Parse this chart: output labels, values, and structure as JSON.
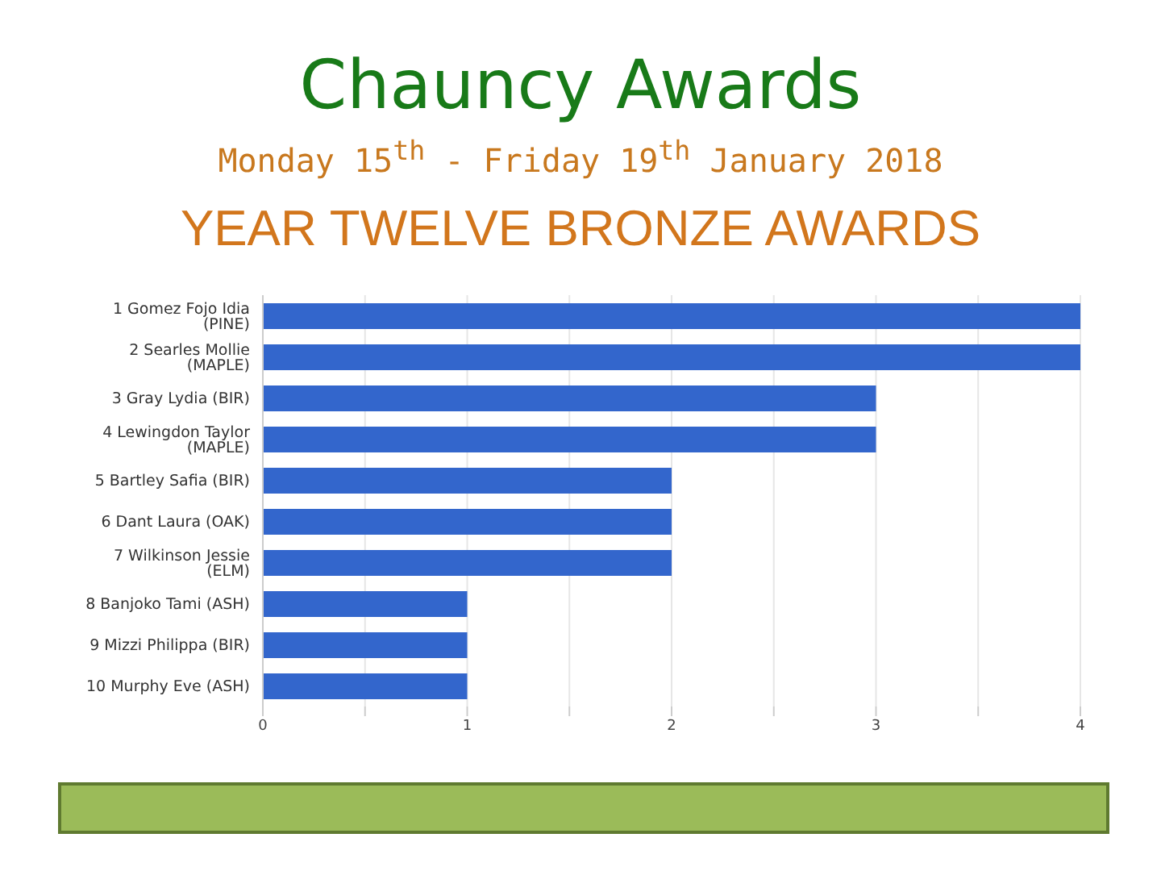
{
  "chart_data": {
    "type": "bar",
    "orientation": "horizontal",
    "title": "Chauncy Awards",
    "subtitle": "Monday 15$^{th}$ - Friday 19$^{th}$ January 2018",
    "annotations": [
      "YEAR TWELVE BRONZE AWARDS"
    ],
    "categories": [
      "1 Gomez Fojo Idia (PINE)",
      "2 Searles Mollie (MAPLE)",
      "3 Gray Lydia (BIR)",
      "4 Lewingdon Taylor (MAPLE)",
      "5 Bartley Safia (BIR)",
      "6 Dant Laura (OAK)",
      "7 Wilkinson Jessie (ELM)",
      "8 Banjoko Tami (ASH)",
      "9 Mizzi Philippa (BIR)",
      "10 Murphy Eve (ASH)"
    ],
    "values": [
      4,
      4,
      3,
      3,
      2,
      2,
      2,
      1,
      1,
      1
    ],
    "color": "#3366cc",
    "xlim": [
      0,
      4
    ],
    "xticks": [
      0,
      {
        "value": 0.5,
        "label": null
      },
      1,
      {
        "value": 1.5,
        "label": null
      },
      2,
      {
        "value": 2.5,
        "label": null
      },
      3,
      {
        "value": 3.5,
        "label": null
      },
      4
    ],
    "grid": "x"
  }
}
